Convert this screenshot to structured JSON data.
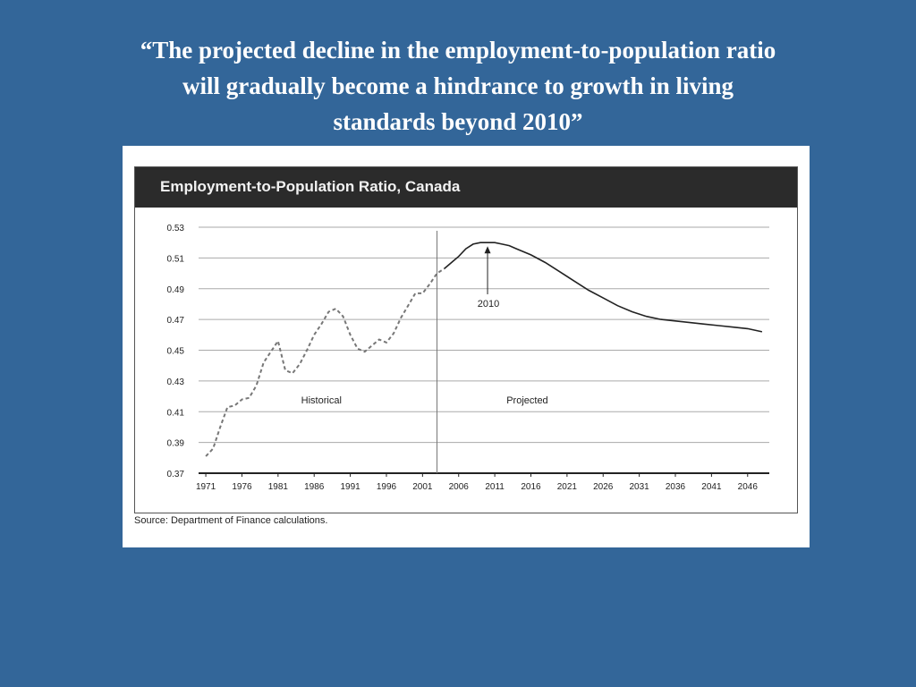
{
  "slide": {
    "title_lines": [
      "“The projected decline in the employment-to-population ratio",
      "will gradually become a hindrance to growth in living",
      "standards beyond 2010”"
    ],
    "background_color": "#336699"
  },
  "chart_data": {
    "type": "line",
    "title": "Employment-to-Population Ratio, Canada",
    "source": "Source: Department of Finance calculations.",
    "xlabel": "",
    "ylabel": "",
    "x_ticks": [
      "1971",
      "1976",
      "1981",
      "1986",
      "1991",
      "1996",
      "2001",
      "2006",
      "2011",
      "2016",
      "2021",
      "2026",
      "2031",
      "2036",
      "2041",
      "2046"
    ],
    "y_ticks": [
      "0.53",
      "0.51",
      "0.49",
      "0.47",
      "0.45",
      "0.43",
      "0.41",
      "0.39",
      "0.37"
    ],
    "xlim": [
      1970,
      2049
    ],
    "ylim": [
      0.37,
      0.53
    ],
    "grid": "horizontal",
    "divider_year": 2003,
    "region_labels": {
      "historical": "Historical",
      "projected": "Projected"
    },
    "annotation": {
      "text": "2010",
      "x": 2010,
      "y": 0.52
    },
    "series": [
      {
        "style": "dashed",
        "points": [
          [
            1971,
            0.381
          ],
          [
            1972,
            0.386
          ],
          [
            1973,
            0.4
          ],
          [
            1974,
            0.413
          ],
          [
            1975,
            0.414
          ],
          [
            1976,
            0.418
          ],
          [
            1977,
            0.419
          ],
          [
            1978,
            0.427
          ],
          [
            1979,
            0.442
          ],
          [
            1980,
            0.449
          ],
          [
            1981,
            0.456
          ],
          [
            1982,
            0.437
          ],
          [
            1983,
            0.435
          ],
          [
            1984,
            0.441
          ],
          [
            1985,
            0.45
          ],
          [
            1986,
            0.46
          ],
          [
            1987,
            0.467
          ],
          [
            1988,
            0.475
          ],
          [
            1989,
            0.477
          ],
          [
            1990,
            0.472
          ],
          [
            1991,
            0.46
          ],
          [
            1992,
            0.451
          ],
          [
            1993,
            0.449
          ],
          [
            1994,
            0.453
          ],
          [
            1995,
            0.457
          ],
          [
            1996,
            0.455
          ],
          [
            1997,
            0.461
          ],
          [
            1998,
            0.471
          ],
          [
            1999,
            0.479
          ],
          [
            2000,
            0.487
          ],
          [
            2001,
            0.487
          ],
          [
            2002,
            0.493
          ],
          [
            2003,
            0.5
          ],
          [
            2004,
            0.503
          ]
        ]
      },
      {
        "style": "solid",
        "points": [
          [
            2004,
            0.503
          ],
          [
            2005,
            0.507
          ],
          [
            2006,
            0.511
          ],
          [
            2007,
            0.516
          ],
          [
            2008,
            0.519
          ],
          [
            2009,
            0.52
          ],
          [
            2010,
            0.52
          ],
          [
            2011,
            0.52
          ],
          [
            2012,
            0.519
          ],
          [
            2013,
            0.518
          ],
          [
            2014,
            0.516
          ],
          [
            2016,
            0.512
          ],
          [
            2018,
            0.507
          ],
          [
            2020,
            0.501
          ],
          [
            2022,
            0.495
          ],
          [
            2024,
            0.489
          ],
          [
            2026,
            0.484
          ],
          [
            2028,
            0.479
          ],
          [
            2030,
            0.475
          ],
          [
            2032,
            0.472
          ],
          [
            2034,
            0.47
          ],
          [
            2036,
            0.469
          ],
          [
            2038,
            0.468
          ],
          [
            2040,
            0.467
          ],
          [
            2042,
            0.466
          ],
          [
            2044,
            0.465
          ],
          [
            2046,
            0.464
          ],
          [
            2048,
            0.462
          ]
        ]
      }
    ]
  }
}
